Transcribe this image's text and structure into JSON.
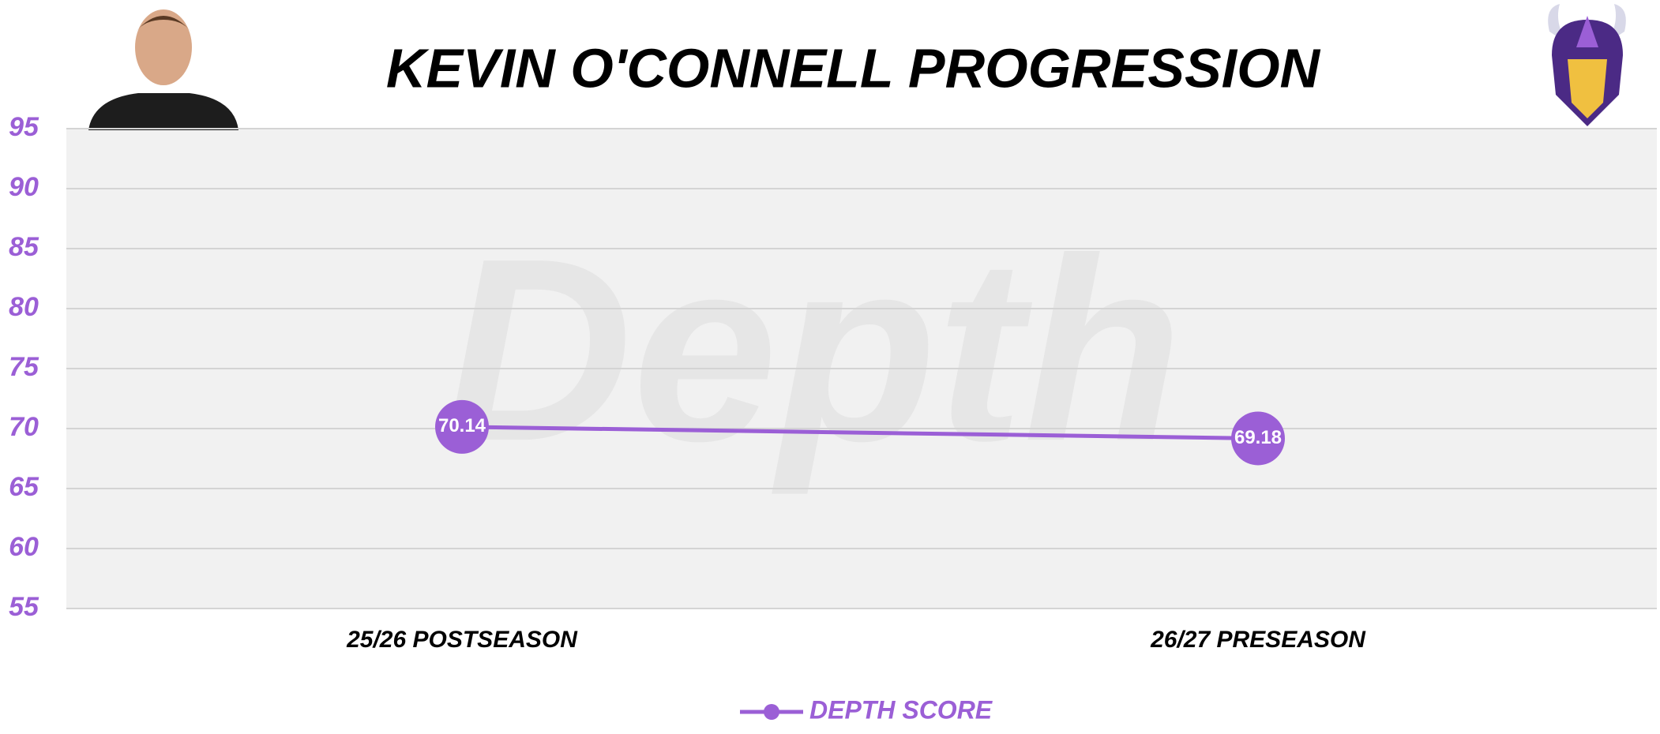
{
  "chart_data": {
    "type": "line",
    "title": "KEVIN O'CONNELL PROGRESSION",
    "watermark": "Depth",
    "categories": [
      "25/26 POSTSEASON",
      "26/27 PRESEASON"
    ],
    "series": [
      {
        "name": "DEPTH SCORE",
        "color": "#9b5fd6",
        "values": [
          70.14,
          69.18
        ]
      }
    ],
    "ylim": [
      55,
      95
    ],
    "yticks": [
      55,
      60,
      65,
      70,
      75,
      80,
      85,
      90,
      95
    ],
    "grid": true,
    "legend": "bottom"
  }
}
